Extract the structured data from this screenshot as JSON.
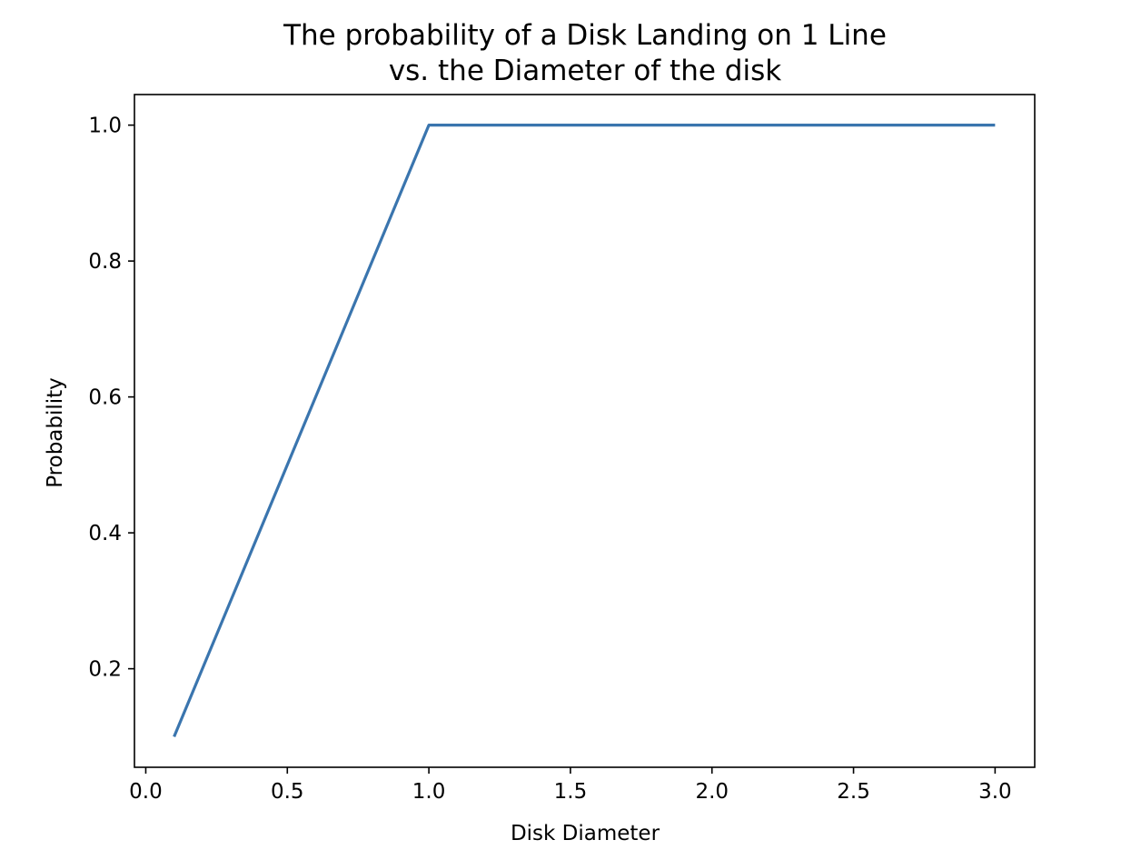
{
  "chart_data": {
    "type": "line",
    "title_lines": [
      "The probability of a Disk Landing on 1 Line",
      "vs. the Diameter of the disk"
    ],
    "xlabel": "Disk Diameter",
    "ylabel": "Probability",
    "xlim": [
      -0.04,
      3.14
    ],
    "ylim": [
      0.055,
      1.045
    ],
    "x_ticks": [
      0.0,
      0.5,
      1.0,
      1.5,
      2.0,
      2.5,
      3.0
    ],
    "x_tick_labels": [
      "0.0",
      "0.5",
      "1.0",
      "1.5",
      "2.0",
      "2.5",
      "3.0"
    ],
    "y_ticks": [
      0.2,
      0.4,
      0.6,
      0.8,
      1.0
    ],
    "y_tick_labels": [
      "0.2",
      "0.4",
      "0.6",
      "0.8",
      "1.0"
    ],
    "grid": false,
    "series": [
      {
        "color": "#3a75ae",
        "x": [
          0.1,
          1.0,
          3.0
        ],
        "y": [
          0.1,
          1.0,
          1.0
        ]
      }
    ]
  }
}
